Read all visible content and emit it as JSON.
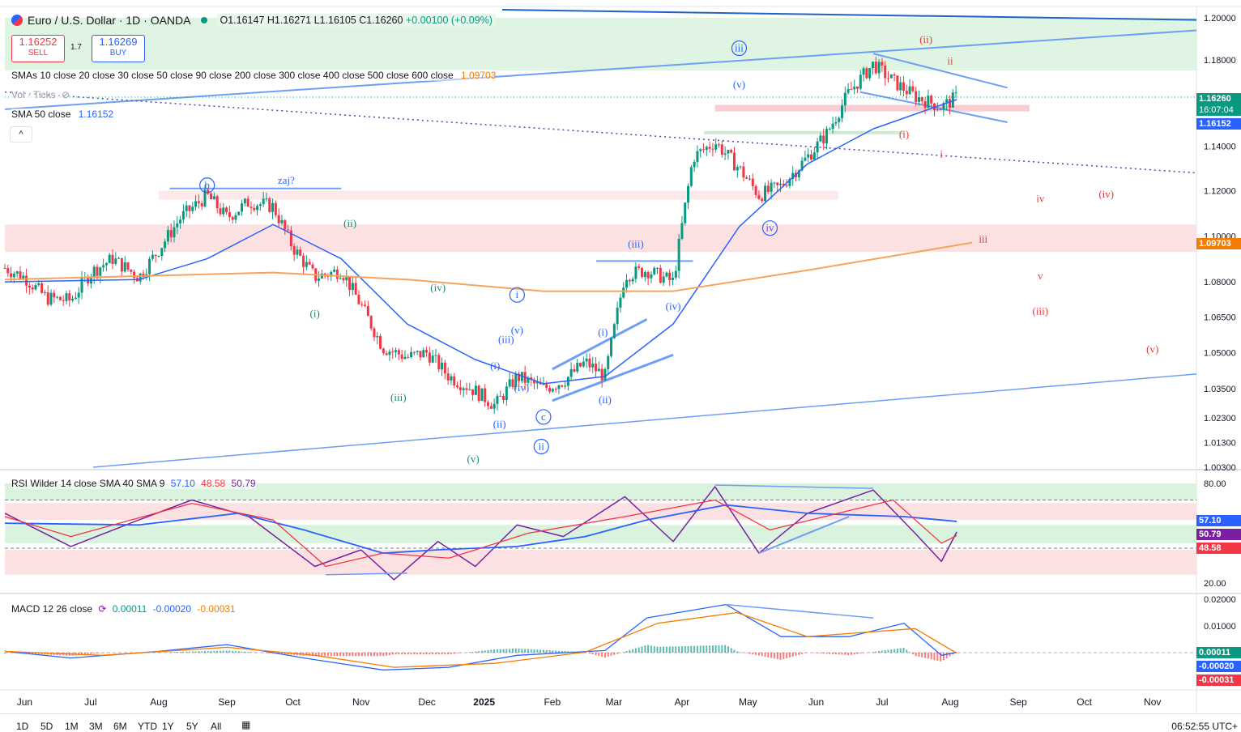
{
  "header": {
    "symbol": "Euro / U.S. Dollar · 1D · OANDA",
    "open": "O1.16147",
    "high": "H1.16271",
    "low": "L1.16105",
    "close": "C1.16260",
    "change": "+0.00100 (+0.09%)",
    "sell_price": "1.16252",
    "sell_label": "SELL",
    "spread": "1.7",
    "buy_price": "1.16269",
    "buy_label": "BUY"
  },
  "indicators": {
    "smas_label": "SMAs 10 close 20 close 30 close 50 close 90 close 200 close 300 close 400 close 500 close 600 close",
    "smas_value": "1.09703",
    "vol_label": "Vol · Ticks",
    "sma50_label": "SMA 50 close",
    "sma50_value": "1.16152",
    "rsi_label": "RSI Wilder 14 close SMA 40 SMA 9",
    "rsi_v1": "57.10",
    "rsi_v2": "48.58",
    "rsi_v3": "50.79",
    "macd_label": "MACD 12 26 close",
    "macd_v1": "0.00011",
    "macd_v2": "-0.00020",
    "macd_v3": "-0.00031"
  },
  "price_axis_badges": {
    "last_price": "1.16260",
    "countdown": "16:07:04",
    "sma50": "1.16152",
    "sma_orange": "1.09703",
    "rsi_a": "57.10",
    "rsi_b": "50.79",
    "rsi_c": "48.58",
    "macd_a": "0.00011",
    "macd_b": "-0.00020",
    "macd_c": "-0.00031"
  },
  "bottom_bar": {
    "ranges": [
      "1D",
      "5D",
      "1M",
      "3M",
      "6M",
      "YTD",
      "1Y",
      "5Y",
      "All"
    ],
    "clock": "06:52:55 UTC+"
  },
  "colors": {
    "up": "#089981",
    "down": "#f23645",
    "sma50": "#2962ff",
    "sma_orange": "#f7a35c",
    "rsi": "#7b1fa2",
    "trend": "#6e9ef5",
    "wave_blue": "#2962ff",
    "wave_green": "#138d75",
    "wave_red": "#e53935"
  },
  "chart_data": [
    {
      "type": "candlestick",
      "title": "Euro / U.S. Dollar · 1D · OANDA",
      "x_ticks": [
        "Jun",
        "Jul",
        "Aug",
        "Sep",
        "Oct",
        "Nov",
        "Dec",
        "2025",
        "Feb",
        "Mar",
        "Apr",
        "May",
        "Jun",
        "Jul",
        "Aug",
        "Sep",
        "Oct",
        "Nov"
      ],
      "y_ticks": [
        1.2,
        1.18,
        1.16,
        1.14,
        1.12,
        1.1,
        1.08,
        1.065,
        1.05,
        1.035,
        1.023,
        1.013,
        1.003
      ],
      "y_scale": "log",
      "close_path": {
        "x": [
          "2024-06-01",
          "2024-06-10",
          "2024-06-20",
          "2024-07-01",
          "2024-07-10",
          "2024-07-20",
          "2024-08-01",
          "2024-08-10",
          "2024-08-20",
          "2024-09-01",
          "2024-09-10",
          "2024-09-20",
          "2024-10-01",
          "2024-10-10",
          "2024-10-20",
          "2024-11-01",
          "2024-11-10",
          "2024-11-20",
          "2024-12-01",
          "2024-12-10",
          "2024-12-20",
          "2025-01-01",
          "2025-01-10",
          "2025-01-20",
          "2025-02-01",
          "2025-02-10",
          "2025-02-20",
          "2025-03-01",
          "2025-03-10",
          "2025-03-20",
          "2025-04-01",
          "2025-04-10",
          "2025-04-20",
          "2025-05-01",
          "2025-05-10",
          "2025-05-20",
          "2025-06-01",
          "2025-06-10",
          "2025-06-20",
          "2025-07-01",
          "2025-07-10",
          "2025-07-20",
          "2025-08-01",
          "2025-08-08"
        ],
        "y": [
          1.086,
          1.082,
          1.073,
          1.072,
          1.084,
          1.09,
          1.082,
          1.094,
          1.108,
          1.118,
          1.108,
          1.115,
          1.113,
          1.095,
          1.082,
          1.085,
          1.07,
          1.052,
          1.048,
          1.05,
          1.04,
          1.034,
          1.028,
          1.04,
          1.035,
          1.038,
          1.046,
          1.04,
          1.083,
          1.085,
          1.08,
          1.135,
          1.142,
          1.13,
          1.118,
          1.122,
          1.135,
          1.146,
          1.165,
          1.178,
          1.17,
          1.163,
          1.158,
          1.1626
        ]
      },
      "sma50": {
        "x": [
          "2024-06-01",
          "2024-08-01",
          "2024-09-01",
          "2024-10-01",
          "2024-11-01",
          "2024-12-01",
          "2025-01-01",
          "2025-02-01",
          "2025-03-01",
          "2025-04-01",
          "2025-05-01",
          "2025-06-01",
          "2025-07-01",
          "2025-08-08"
        ],
        "y": [
          1.08,
          1.081,
          1.09,
          1.105,
          1.09,
          1.062,
          1.047,
          1.037,
          1.04,
          1.062,
          1.104,
          1.132,
          1.148,
          1.16152
        ]
      },
      "sma_orange": {
        "x": [
          "2024-06-01",
          "2024-10-01",
          "2024-12-01",
          "2025-02-01",
          "2025-04-01",
          "2025-06-01",
          "2025-08-15"
        ],
        "y": [
          1.081,
          1.084,
          1.081,
          1.076,
          1.076,
          1.085,
          1.09703
        ]
      },
      "waves": [
        {
          "label": "b",
          "x": "2024-09-01",
          "y": 1.121,
          "circle": true,
          "color": "blue"
        },
        {
          "label": "zaj?",
          "x": "2024-10-07",
          "y": 1.123,
          "circle": false,
          "color": "blue"
        },
        {
          "label": "(ii)",
          "x": "2024-11-05",
          "y": 1.104,
          "circle": false,
          "color": "green"
        },
        {
          "label": "(i)",
          "x": "2024-10-20",
          "y": 1.065,
          "circle": false,
          "color": "green"
        },
        {
          "label": "(iii)",
          "x": "2024-11-27",
          "y": 1.03,
          "circle": false,
          "color": "green"
        },
        {
          "label": "(iv)",
          "x": "2024-12-15",
          "y": 1.076,
          "circle": false,
          "color": "green"
        },
        {
          "label": "(v)",
          "x": "2024-12-31",
          "y": 1.005,
          "circle": false,
          "color": "green"
        },
        {
          "label": "i",
          "x": "2025-01-20",
          "y": 1.073,
          "circle": true,
          "color": "blue"
        },
        {
          "label": "(iii)",
          "x": "2025-01-15",
          "y": 1.054,
          "circle": false,
          "color": "blue"
        },
        {
          "label": "(v)",
          "x": "2025-01-20",
          "y": 1.058,
          "circle": false,
          "color": "blue"
        },
        {
          "label": "(i)",
          "x": "2025-01-10",
          "y": 1.043,
          "circle": false,
          "color": "blue"
        },
        {
          "label": "(iv)",
          "x": "2025-01-22",
          "y": 1.034,
          "circle": false,
          "color": "blue"
        },
        {
          "label": "(ii)",
          "x": "2025-01-12",
          "y": 1.019,
          "circle": false,
          "color": "blue"
        },
        {
          "label": "c",
          "x": "2025-02-01",
          "y": 1.022,
          "circle": true,
          "color": "blue"
        },
        {
          "label": "ii",
          "x": "2025-01-31",
          "y": 1.01,
          "circle": true,
          "color": "blue"
        },
        {
          "label": "(i)",
          "x": "2025-02-28",
          "y": 1.057,
          "circle": false,
          "color": "blue"
        },
        {
          "label": "(ii)",
          "x": "2025-03-01",
          "y": 1.029,
          "circle": false,
          "color": "blue"
        },
        {
          "label": "(iii)",
          "x": "2025-03-15",
          "y": 1.095,
          "circle": false,
          "color": "blue"
        },
        {
          "label": "(iv)",
          "x": "2025-04-01",
          "y": 1.068,
          "circle": false,
          "color": "blue"
        },
        {
          "label": "(v)",
          "x": "2025-05-01",
          "y": 1.167,
          "circle": false,
          "color": "blue"
        },
        {
          "label": "iii",
          "x": "2025-05-01",
          "y": 1.184,
          "circle": true,
          "color": "blue"
        },
        {
          "label": "iv",
          "x": "2025-05-15",
          "y": 1.102,
          "circle": true,
          "color": "blue"
        },
        {
          "label": "(ii)",
          "x": "2025-07-25",
          "y": 1.188,
          "circle": false,
          "color": "red"
        },
        {
          "label": "ii",
          "x": "2025-08-05",
          "y": 1.178,
          "circle": false,
          "color": "red"
        },
        {
          "label": "(i)",
          "x": "2025-07-15",
          "y": 1.144,
          "circle": false,
          "color": "red"
        },
        {
          "label": "i",
          "x": "2025-08-01",
          "y": 1.135,
          "circle": false,
          "color": "red"
        },
        {
          "label": "iii",
          "x": "2025-08-20",
          "y": 1.097,
          "circle": false,
          "color": "red"
        },
        {
          "label": "iv",
          "x": "2025-09-15",
          "y": 1.115,
          "circle": false,
          "color": "red"
        },
        {
          "label": "(iv)",
          "x": "2025-10-15",
          "y": 1.117,
          "circle": false,
          "color": "red"
        },
        {
          "label": "v",
          "x": "2025-09-15",
          "y": 1.081,
          "circle": false,
          "color": "red"
        },
        {
          "label": "(iii)",
          "x": "2025-09-15",
          "y": 1.066,
          "circle": false,
          "color": "red"
        },
        {
          "label": "(v)",
          "x": "2025-11-05",
          "y": 1.05,
          "circle": false,
          "color": "red"
        }
      ]
    },
    {
      "type": "line",
      "title": "RSI Wilder 14 close SMA 40 SMA 9",
      "y_ticks": [
        80,
        20
      ],
      "rsi": {
        "x": [
          "2024-06-01",
          "2024-07-01",
          "2024-08-01",
          "2024-08-25",
          "2024-09-20",
          "2024-10-20",
          "2024-11-10",
          "2024-11-25",
          "2024-12-15",
          "2025-01-01",
          "2025-01-20",
          "2025-02-10",
          "2025-03-10",
          "2025-04-01",
          "2025-04-20",
          "2025-05-10",
          "2025-06-01",
          "2025-07-01",
          "2025-07-20",
          "2025-08-01",
          "2025-08-08"
        ],
        "y": [
          62,
          42,
          58,
          70,
          60,
          30,
          40,
          22,
          45,
          30,
          55,
          48,
          72,
          45,
          78,
          38,
          62,
          76,
          50,
          33,
          50.79
        ]
      },
      "sma40": {
        "x": [
          "2024-06-01",
          "2024-08-01",
          "2024-09-15",
          "2024-10-15",
          "2024-11-20",
          "2024-12-15",
          "2025-01-20",
          "2025-02-20",
          "2025-03-20",
          "2025-04-25",
          "2025-06-01",
          "2025-07-15",
          "2025-08-08"
        ],
        "y": [
          56,
          55,
          62,
          52,
          38,
          40,
          42,
          48,
          58,
          67,
          62,
          60,
          57.1
        ]
      },
      "sma9": {
        "x": [
          "2024-06-01",
          "2024-07-01",
          "2024-08-25",
          "2024-10-01",
          "2024-10-25",
          "2024-11-20",
          "2024-12-20",
          "2025-01-25",
          "2025-03-10",
          "2025-04-20",
          "2025-05-15",
          "2025-06-15",
          "2025-07-10",
          "2025-08-01",
          "2025-08-08"
        ],
        "y": [
          60,
          48,
          68,
          58,
          30,
          38,
          35,
          50,
          60,
          70,
          52,
          62,
          70,
          44,
          48.58
        ]
      }
    },
    {
      "type": "bar",
      "title": "MACD 12 26 close",
      "y_ticks": [
        0.02,
        0.01,
        0
      ],
      "macd": {
        "x": [
          "2024-06-01",
          "2024-07-01",
          "2024-08-10",
          "2024-09-10",
          "2024-10-15",
          "2024-11-20",
          "2024-12-20",
          "2025-01-20",
          "2025-03-01",
          "2025-03-20",
          "2025-04-25",
          "2025-05-20",
          "2025-06-20",
          "2025-07-15",
          "2025-08-01",
          "2025-08-08"
        ],
        "y": [
          0.0005,
          -0.002,
          0.0005,
          0.003,
          -0.002,
          -0.0065,
          -0.0055,
          -0.001,
          0.0008,
          0.013,
          0.018,
          0.006,
          0.006,
          0.011,
          -0.001,
          0.00011
        ]
      },
      "signal": {
        "x": [
          "2024-06-01",
          "2024-07-15",
          "2024-09-10",
          "2024-10-20",
          "2024-11-25",
          "2025-01-10",
          "2025-02-20",
          "2025-03-25",
          "2025-04-30",
          "2025-06-01",
          "2025-07-20",
          "2025-08-08"
        ],
        "y": [
          0.0005,
          -0.001,
          0.002,
          -0.001,
          -0.0055,
          -0.004,
          0.0002,
          0.011,
          0.015,
          0.006,
          0.009,
          -0.0002
        ]
      }
    }
  ]
}
